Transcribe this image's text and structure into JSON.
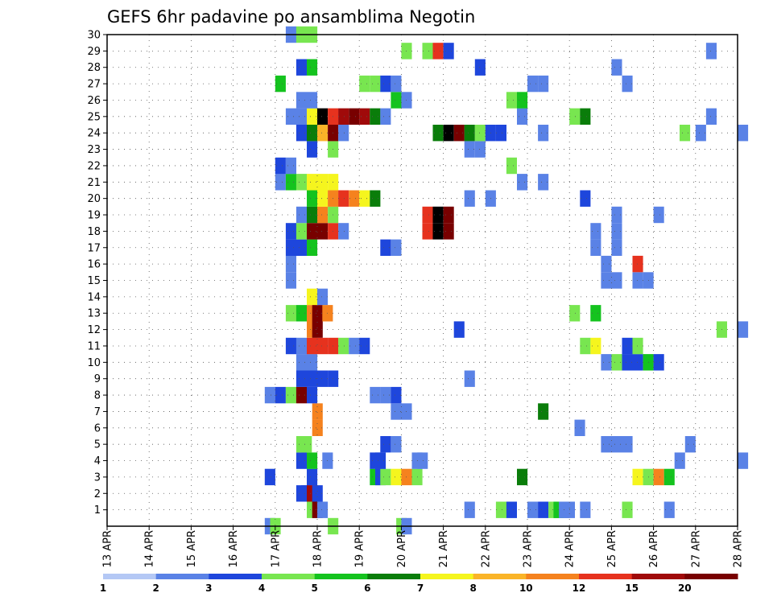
{
  "chart_data": {
    "type": "heatmap",
    "title": "GEFS 6hr padavine po ansamblima Negotin",
    "xlabel": "",
    "ylabel": "",
    "x_ticks": [
      "13 APR",
      "14 APR",
      "15 APR",
      "16 APR",
      "17 APR",
      "18 APR",
      "19 APR",
      "20 APR",
      "21 APR",
      "22 APR",
      "23 APR",
      "24 APR",
      "25 APR",
      "26 APR",
      "27 APR",
      "28 APR"
    ],
    "y_ticks": [
      "1",
      "2",
      "3",
      "4",
      "5",
      "6",
      "7",
      "8",
      "9",
      "10",
      "11",
      "12",
      "13",
      "14",
      "15",
      "16",
      "17",
      "18",
      "19",
      "20",
      "21",
      "22",
      "23",
      "24",
      "25",
      "26",
      "27",
      "28",
      "29",
      "30"
    ],
    "ylim": [
      0,
      30
    ],
    "grid": true,
    "colorbar": {
      "labels": [
        "1",
        "2",
        "3",
        "4",
        "5",
        "6",
        "7",
        "8",
        "10",
        "12",
        "15",
        "20"
      ],
      "colors": [
        "#b4c8f5",
        "#5a82e6",
        "#1e46dc",
        "#78e650",
        "#14c31e",
        "#0a7d0a",
        "#f5f51e",
        "#fab428",
        "#f5821e",
        "#e6321e",
        "#a00a0a",
        "#780000"
      ]
    },
    "rows": [
      {
        "member": "0",
        "cells": [
          [
            16.75,
            1
          ],
          [
            16.88,
            3
          ],
          [
            18.25,
            3
          ],
          [
            19.88,
            3
          ],
          [
            20.0,
            1
          ]
        ]
      },
      {
        "member": "1",
        "cells": [
          [
            17.75,
            3
          ],
          [
            17.88,
            11
          ],
          [
            18.0,
            1
          ],
          [
            21.5,
            1
          ],
          [
            22.25,
            3
          ],
          [
            22.5,
            2
          ],
          [
            23.0,
            1
          ],
          [
            23.25,
            2
          ],
          [
            23.5,
            3
          ],
          [
            23.62,
            4
          ],
          [
            23.75,
            1
          ],
          [
            23.88,
            1
          ],
          [
            24.25,
            1
          ],
          [
            25.25,
            3
          ],
          [
            26.25,
            1
          ]
        ]
      },
      {
        "member": "2",
        "cells": [
          [
            17.5,
            2
          ],
          [
            17.62,
            2
          ],
          [
            17.75,
            10
          ],
          [
            17.88,
            2
          ]
        ]
      },
      {
        "member": "3",
        "cells": [
          [
            16.75,
            2
          ],
          [
            17.75,
            2
          ],
          [
            19.25,
            4
          ],
          [
            19.38,
            2
          ],
          [
            19.5,
            3
          ],
          [
            19.75,
            6
          ],
          [
            20.0,
            8
          ],
          [
            20.25,
            3
          ],
          [
            22.75,
            5
          ],
          [
            25.5,
            6
          ],
          [
            25.75,
            3
          ],
          [
            26.0,
            8
          ],
          [
            26.25,
            4
          ]
        ]
      },
      {
        "member": "4",
        "cells": [
          [
            17.5,
            2
          ],
          [
            17.75,
            4
          ],
          [
            18.12,
            1
          ],
          [
            19.25,
            2
          ],
          [
            19.38,
            2
          ],
          [
            20.25,
            1
          ],
          [
            20.38,
            1
          ],
          [
            26.5,
            1
          ],
          [
            28.0,
            1
          ]
        ]
      },
      {
        "member": "5",
        "cells": [
          [
            17.5,
            3
          ],
          [
            17.62,
            3
          ],
          [
            19.5,
            2
          ],
          [
            19.75,
            1
          ],
          [
            24.75,
            1
          ],
          [
            25.0,
            1
          ],
          [
            25.25,
            1
          ],
          [
            26.75,
            1
          ]
        ]
      },
      {
        "member": "6",
        "cells": [
          [
            17.88,
            8
          ],
          [
            24.12,
            1
          ]
        ]
      },
      {
        "member": "7",
        "cells": [
          [
            17.88,
            8
          ],
          [
            19.75,
            1
          ],
          [
            20.0,
            1
          ],
          [
            23.25,
            5
          ]
        ]
      },
      {
        "member": "8",
        "cells": [
          [
            16.75,
            1
          ],
          [
            17.0,
            2
          ],
          [
            17.25,
            3
          ],
          [
            17.5,
            11
          ],
          [
            17.75,
            2
          ],
          [
            19.25,
            1
          ],
          [
            19.5,
            1
          ],
          [
            19.75,
            2
          ]
        ]
      },
      {
        "member": "9",
        "cells": [
          [
            17.5,
            2
          ],
          [
            17.75,
            2
          ],
          [
            18.0,
            2
          ],
          [
            18.25,
            2
          ],
          [
            21.5,
            1
          ]
        ]
      },
      {
        "member": "10",
        "cells": [
          [
            17.5,
            1
          ],
          [
            17.75,
            1
          ],
          [
            24.75,
            1
          ],
          [
            25.0,
            3
          ],
          [
            25.25,
            2
          ],
          [
            25.5,
            2
          ],
          [
            25.75,
            4
          ],
          [
            26.0,
            2
          ]
        ]
      },
      {
        "member": "11",
        "cells": [
          [
            17.25,
            2
          ],
          [
            17.5,
            1
          ],
          [
            17.75,
            9
          ],
          [
            18.0,
            9
          ],
          [
            18.25,
            9
          ],
          [
            18.5,
            3
          ],
          [
            18.75,
            1
          ],
          [
            19.0,
            2
          ],
          [
            24.25,
            3
          ],
          [
            24.5,
            6
          ],
          [
            25.25,
            2
          ],
          [
            25.5,
            3
          ]
        ]
      },
      {
        "member": "12",
        "cells": [
          [
            17.75,
            8
          ],
          [
            17.88,
            11
          ],
          [
            21.25,
            2
          ],
          [
            27.5,
            3
          ],
          [
            28.0,
            1
          ]
        ]
      },
      {
        "member": "13",
        "cells": [
          [
            17.25,
            3
          ],
          [
            17.5,
            4
          ],
          [
            17.75,
            8
          ],
          [
            17.88,
            11
          ],
          [
            18.12,
            8
          ],
          [
            24.0,
            3
          ],
          [
            24.5,
            4
          ]
        ]
      },
      {
        "member": "14",
        "cells": [
          [
            17.75,
            6
          ],
          [
            18.0,
            1
          ]
        ]
      },
      {
        "member": "15",
        "cells": [
          [
            17.25,
            1
          ],
          [
            24.75,
            1
          ],
          [
            25.0,
            1
          ],
          [
            25.5,
            1
          ],
          [
            25.75,
            1
          ]
        ]
      },
      {
        "member": "16",
        "cells": [
          [
            17.25,
            1
          ],
          [
            24.75,
            1
          ],
          [
            25.5,
            9
          ]
        ]
      },
      {
        "member": "17",
        "cells": [
          [
            17.25,
            2
          ],
          [
            17.5,
            2
          ],
          [
            17.75,
            4
          ],
          [
            19.5,
            2
          ],
          [
            19.75,
            1
          ],
          [
            24.5,
            1
          ],
          [
            25.0,
            1
          ]
        ]
      },
      {
        "member": "18",
        "cells": [
          [
            17.25,
            2
          ],
          [
            17.5,
            3
          ],
          [
            17.75,
            11
          ],
          [
            18.0,
            11
          ],
          [
            18.25,
            9
          ],
          [
            18.5,
            1
          ],
          [
            20.5,
            9
          ],
          [
            20.75,
            12
          ],
          [
            21.0,
            11
          ],
          [
            24.5,
            1
          ],
          [
            25.0,
            1
          ]
        ]
      },
      {
        "member": "19",
        "cells": [
          [
            17.5,
            1
          ],
          [
            17.75,
            5
          ],
          [
            18.0,
            8
          ],
          [
            18.25,
            3
          ],
          [
            20.5,
            9
          ],
          [
            20.75,
            12
          ],
          [
            21.0,
            11
          ],
          [
            25.0,
            1
          ],
          [
            26.0,
            1
          ]
        ]
      },
      {
        "member": "20",
        "cells": [
          [
            17.75,
            4
          ],
          [
            18.0,
            6
          ],
          [
            18.25,
            8
          ],
          [
            18.5,
            9
          ],
          [
            18.75,
            8
          ],
          [
            19.0,
            6
          ],
          [
            19.25,
            5
          ],
          [
            21.5,
            1
          ],
          [
            22.0,
            1
          ],
          [
            24.25,
            2
          ]
        ]
      },
      {
        "member": "21",
        "cells": [
          [
            17.0,
            1
          ],
          [
            17.25,
            4
          ],
          [
            17.5,
            3
          ],
          [
            17.75,
            6
          ],
          [
            18.0,
            6
          ],
          [
            18.25,
            6
          ],
          [
            22.75,
            1
          ],
          [
            23.25,
            1
          ]
        ]
      },
      {
        "member": "22",
        "cells": [
          [
            17.0,
            2
          ],
          [
            17.25,
            1
          ],
          [
            22.5,
            3
          ]
        ]
      },
      {
        "member": "23",
        "cells": [
          [
            17.75,
            2
          ],
          [
            18.25,
            3
          ],
          [
            21.5,
            1
          ],
          [
            21.75,
            1
          ]
        ]
      },
      {
        "member": "24",
        "cells": [
          [
            17.5,
            2
          ],
          [
            17.75,
            5
          ],
          [
            18.0,
            7
          ],
          [
            18.25,
            11
          ],
          [
            18.5,
            1
          ],
          [
            20.75,
            5
          ],
          [
            21.0,
            12
          ],
          [
            21.25,
            11
          ],
          [
            21.5,
            5
          ],
          [
            21.75,
            3
          ],
          [
            22.0,
            2
          ],
          [
            22.25,
            2
          ],
          [
            23.25,
            1
          ],
          [
            26.62,
            3
          ],
          [
            27.0,
            1
          ],
          [
            28.0,
            1
          ]
        ]
      },
      {
        "member": "25",
        "cells": [
          [
            17.25,
            1
          ],
          [
            17.5,
            1
          ],
          [
            17.75,
            6
          ],
          [
            18.0,
            12
          ],
          [
            18.25,
            9
          ],
          [
            18.5,
            10
          ],
          [
            18.75,
            11
          ],
          [
            19.0,
            10
          ],
          [
            19.25,
            5
          ],
          [
            19.5,
            1
          ],
          [
            22.75,
            1
          ],
          [
            24.0,
            3
          ],
          [
            24.25,
            5
          ],
          [
            27.25,
            1
          ]
        ]
      },
      {
        "member": "26",
        "cells": [
          [
            17.5,
            1
          ],
          [
            17.75,
            1
          ],
          [
            19.75,
            4
          ],
          [
            20.0,
            1
          ],
          [
            22.5,
            3
          ],
          [
            22.75,
            4
          ]
        ]
      },
      {
        "member": "27",
        "cells": [
          [
            17.0,
            4
          ],
          [
            19.0,
            3
          ],
          [
            19.25,
            3
          ],
          [
            19.5,
            2
          ],
          [
            19.75,
            1
          ],
          [
            23.0,
            1
          ],
          [
            23.25,
            1
          ],
          [
            25.25,
            1
          ]
        ]
      },
      {
        "member": "28",
        "cells": [
          [
            17.5,
            2
          ],
          [
            17.75,
            4
          ],
          [
            21.75,
            2
          ],
          [
            25.0,
            1
          ]
        ]
      },
      {
        "member": "29",
        "cells": [
          [
            20.0,
            3
          ],
          [
            20.5,
            3
          ],
          [
            20.75,
            9
          ],
          [
            21.0,
            2
          ],
          [
            27.25,
            1
          ]
        ]
      },
      {
        "member": "30",
        "cells": [
          [
            17.25,
            1
          ],
          [
            17.5,
            3
          ],
          [
            17.75,
            3
          ]
        ]
      }
    ]
  }
}
